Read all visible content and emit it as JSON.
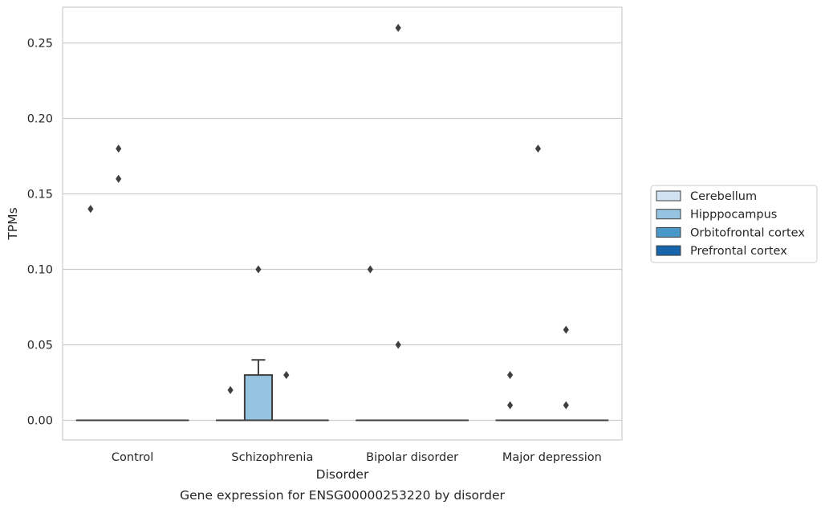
{
  "chart_data": {
    "type": "box",
    "title": "",
    "caption": "Gene expression for ENSG00000253220 by disorder",
    "xlabel": "Disorder",
    "ylabel": "TPMs",
    "categories": [
      "Control",
      "Schizophrenia",
      "Bipolar disorder",
      "Major depression"
    ],
    "ylim": [
      -0.013,
      0.274
    ],
    "yticks": [
      0.0,
      0.05,
      0.1,
      0.15,
      0.2,
      0.25
    ],
    "ytick_labels": [
      "0.00",
      "0.05",
      "0.10",
      "0.15",
      "0.20",
      "0.25"
    ],
    "grid": true,
    "legend_placement": "right",
    "series": [
      {
        "name": "Cerebellum",
        "color": "#d0e1f2",
        "boxes": [
          {
            "category": "Control",
            "q1": 0,
            "median": 0,
            "q3": 0,
            "whisker_low": 0,
            "whisker_high": 0,
            "outliers": [
              0.14
            ]
          },
          {
            "category": "Schizophrenia",
            "q1": 0,
            "median": 0,
            "q3": 0,
            "whisker_low": 0,
            "whisker_high": 0,
            "outliers": [
              0.02
            ]
          },
          {
            "category": "Bipolar disorder",
            "q1": 0,
            "median": 0,
            "q3": 0,
            "whisker_low": 0,
            "whisker_high": 0,
            "outliers": [
              0.1
            ]
          },
          {
            "category": "Major depression",
            "q1": 0,
            "median": 0,
            "q3": 0,
            "whisker_low": 0,
            "whisker_high": 0,
            "outliers": [
              0.01,
              0.03
            ]
          }
        ]
      },
      {
        "name": "Hipppocampus",
        "color": "#94c4df",
        "boxes": [
          {
            "category": "Control",
            "q1": 0,
            "median": 0,
            "q3": 0,
            "whisker_low": 0,
            "whisker_high": 0,
            "outliers": [
              0.16,
              0.18
            ]
          },
          {
            "category": "Schizophrenia",
            "q1": 0,
            "median": 0,
            "q3": 0.03,
            "whisker_low": 0,
            "whisker_high": 0.04,
            "outliers": [
              0.1
            ]
          },
          {
            "category": "Bipolar disorder",
            "q1": 0,
            "median": 0,
            "q3": 0,
            "whisker_low": 0,
            "whisker_high": 0,
            "outliers": [
              0.05,
              0.26
            ]
          },
          {
            "category": "Major depression",
            "q1": 0,
            "median": 0,
            "q3": 0,
            "whisker_low": 0,
            "whisker_high": 0,
            "outliers": [
              0.18
            ]
          }
        ]
      },
      {
        "name": "Orbitofrontal cortex",
        "color": "#4a98c9",
        "boxes": [
          {
            "category": "Control",
            "q1": 0,
            "median": 0,
            "q3": 0,
            "whisker_low": 0,
            "whisker_high": 0,
            "outliers": []
          },
          {
            "category": "Schizophrenia",
            "q1": 0,
            "median": 0,
            "q3": 0,
            "whisker_low": 0,
            "whisker_high": 0,
            "outliers": [
              0.03
            ]
          },
          {
            "category": "Bipolar disorder",
            "q1": 0,
            "median": 0,
            "q3": 0,
            "whisker_low": 0,
            "whisker_high": 0,
            "outliers": []
          },
          {
            "category": "Major depression",
            "q1": 0,
            "median": 0,
            "q3": 0,
            "whisker_low": 0,
            "whisker_high": 0,
            "outliers": [
              0.01,
              0.06
            ]
          }
        ]
      },
      {
        "name": "Prefrontal cortex",
        "color": "#1764ab",
        "boxes": [
          {
            "category": "Control",
            "q1": 0,
            "median": 0,
            "q3": 0,
            "whisker_low": 0,
            "whisker_high": 0,
            "outliers": []
          },
          {
            "category": "Schizophrenia",
            "q1": 0,
            "median": 0,
            "q3": 0,
            "whisker_low": 0,
            "whisker_high": 0,
            "outliers": []
          },
          {
            "category": "Bipolar disorder",
            "q1": 0,
            "median": 0,
            "q3": 0,
            "whisker_low": 0,
            "whisker_high": 0,
            "outliers": []
          },
          {
            "category": "Major depression",
            "q1": 0,
            "median": 0,
            "q3": 0,
            "whisker_low": 0,
            "whisker_high": 0,
            "outliers": []
          }
        ]
      }
    ],
    "colors": {
      "grid": "#cccccc",
      "spine": "#cccccc",
      "box_edge": "#3f3f3f",
      "outlier": "#3f3f3f"
    }
  }
}
